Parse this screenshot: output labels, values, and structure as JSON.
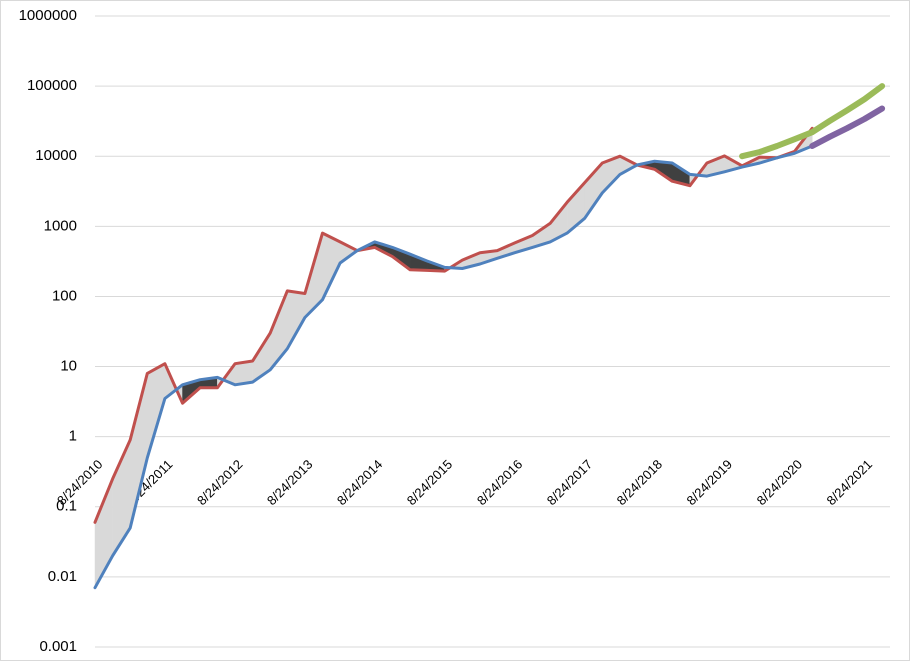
{
  "chart_data": {
    "type": "line",
    "log_scale": true,
    "grid": true,
    "x": [
      "8/24/2010",
      "11/24/2010",
      "2/24/2011",
      "5/24/2011",
      "8/24/2011",
      "11/24/2011",
      "2/24/2012",
      "5/24/2012",
      "8/24/2012",
      "11/24/2012",
      "2/24/2013",
      "5/24/2013",
      "8/24/2013",
      "11/24/2013",
      "2/24/2014",
      "5/24/2014",
      "8/24/2014",
      "11/24/2014",
      "2/24/2015",
      "5/24/2015",
      "8/24/2015",
      "11/24/2015",
      "2/24/2016",
      "5/24/2016",
      "8/24/2016",
      "11/24/2016",
      "2/24/2017",
      "5/24/2017",
      "8/24/2017",
      "11/24/2017",
      "2/24/2018",
      "5/24/2018",
      "8/24/2018",
      "11/24/2018",
      "2/24/2019",
      "5/24/2019",
      "8/24/2019",
      "11/24/2019",
      "2/24/2020",
      "5/24/2020",
      "8/24/2020",
      "11/24/2020",
      "2/24/2021",
      "5/24/2021",
      "8/24/2021",
      "11/24/2021"
    ],
    "xlim": [
      "8/24/2010",
      "1/4/2022"
    ],
    "xticks": [
      "8/24/2010",
      "8/24/2011",
      "8/24/2012",
      "8/24/2013",
      "8/24/2014",
      "8/24/2015",
      "8/24/2016",
      "8/24/2017",
      "8/24/2018",
      "8/24/2019",
      "8/24/2020",
      "8/24/2021"
    ],
    "ylim": [
      0.001,
      1000000
    ],
    "yticks": [
      0.001,
      0.01,
      0.1,
      1,
      10,
      100,
      1000,
      10000,
      100000,
      1000000
    ],
    "band_colors": [
      "#d9d9d9",
      "#404040"
    ],
    "series": [
      {
        "color": "#c0504d",
        "width": 3,
        "values": [
          0.06,
          0.25,
          0.9,
          8,
          11,
          3,
          5,
          5,
          11,
          12,
          30,
          120,
          110,
          800,
          600,
          450,
          500,
          370,
          240,
          235,
          230,
          330,
          420,
          450,
          580,
          740,
          1100,
          2200,
          4200,
          8000,
          10000,
          7500,
          6500,
          4400,
          3800,
          8000,
          10100,
          7300,
          9700,
          9500,
          11700,
          25000,
          null,
          null,
          null,
          null
        ]
      },
      {
        "color": "#4f81bd",
        "width": 3,
        "values": [
          0.007,
          0.02,
          0.05,
          0.5,
          3.5,
          5.5,
          6.5,
          7,
          5.5,
          6,
          9,
          18,
          50,
          90,
          300,
          450,
          600,
          500,
          400,
          320,
          260,
          250,
          290,
          350,
          420,
          500,
          600,
          800,
          1300,
          3000,
          5500,
          7500,
          8500,
          8000,
          5500,
          5200,
          6000,
          7000,
          8000,
          9500,
          11000,
          14000,
          null,
          null,
          null,
          null
        ]
      },
      {
        "color": "#9bbb59",
        "width": 6,
        "values": [
          null,
          null,
          null,
          null,
          null,
          null,
          null,
          null,
          null,
          null,
          null,
          null,
          null,
          null,
          null,
          null,
          null,
          null,
          null,
          null,
          null,
          null,
          null,
          null,
          null,
          null,
          null,
          null,
          null,
          null,
          null,
          null,
          null,
          null,
          null,
          null,
          null,
          10000,
          11500,
          14000,
          17500,
          22000,
          32000,
          45000,
          65000,
          100000
        ]
      },
      {
        "color": "#8064a2",
        "width": 6,
        "values": [
          null,
          null,
          null,
          null,
          null,
          null,
          null,
          null,
          null,
          null,
          null,
          null,
          null,
          null,
          null,
          null,
          null,
          null,
          null,
          null,
          null,
          null,
          null,
          null,
          null,
          null,
          null,
          null,
          null,
          null,
          null,
          null,
          null,
          null,
          null,
          null,
          null,
          null,
          null,
          null,
          null,
          14000,
          19000,
          25000,
          34000,
          48000
        ]
      }
    ]
  }
}
